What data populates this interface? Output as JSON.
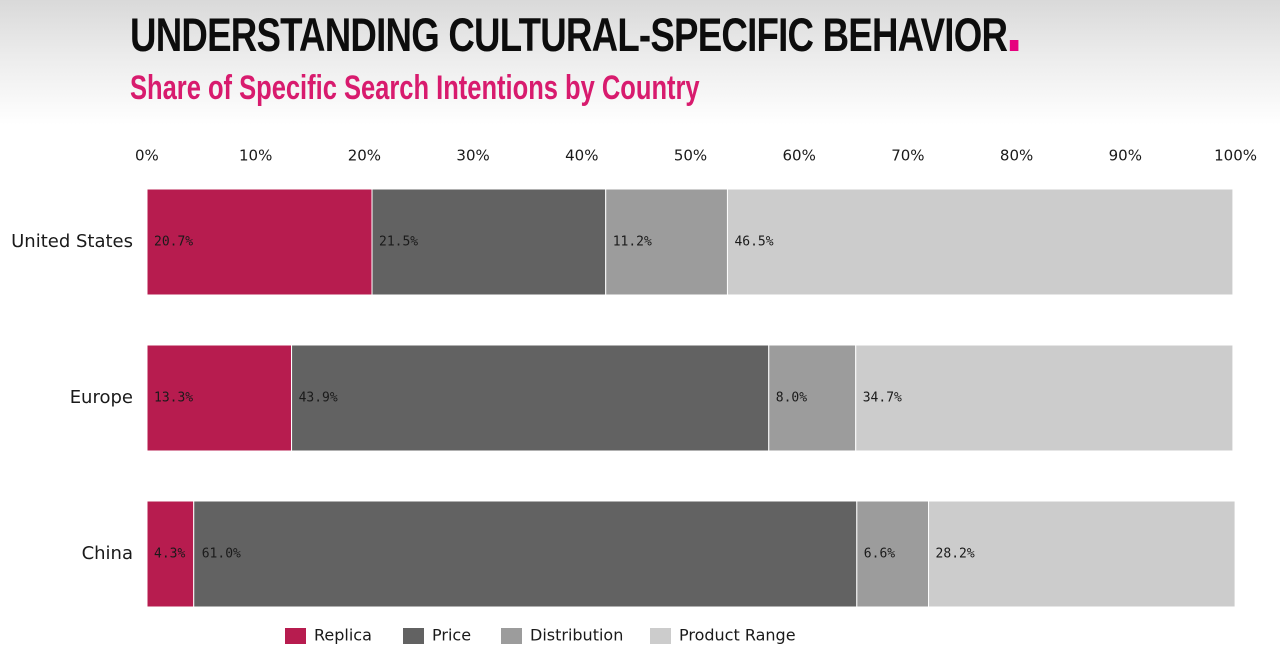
{
  "header": {
    "title": "UNDERSTANDING CULTURAL-SPECIFIC BEHAVIOR",
    "subtitle": "Share of Specific Search Intentions by Country"
  },
  "colors": {
    "Replica": "#b71c4f",
    "Price": "#626262",
    "Distribution": "#9c9c9c",
    "Product Range": "#cccccc",
    "title_accent": "#e6007e",
    "subtitle": "#d81b6e"
  },
  "chart_data": {
    "type": "bar",
    "orientation": "horizontal",
    "stacked": true,
    "title": "UNDERSTANDING CULTURAL-SPECIFIC BEHAVIOR",
    "subtitle": "Share of Specific Search Intentions by Country",
    "categories": [
      "United States",
      "Europe",
      "China"
    ],
    "series": [
      {
        "name": "Replica",
        "values": [
          20.7,
          13.3,
          4.3
        ],
        "labels": [
          "20.7%",
          "13.3%",
          "4.3%"
        ]
      },
      {
        "name": "Price",
        "values": [
          21.5,
          43.9,
          61.0
        ],
        "labels": [
          "21.5%",
          "43.9%",
          "61.0%"
        ]
      },
      {
        "name": "Distribution",
        "values": [
          11.2,
          8.0,
          6.6
        ],
        "labels": [
          "11.2%",
          "8.0%",
          "6.6%"
        ]
      },
      {
        "name": "Product Range",
        "values": [
          46.5,
          34.7,
          28.2
        ],
        "labels": [
          "46.5%",
          "34.7%",
          "28.2%"
        ]
      }
    ],
    "xlim": [
      0,
      100
    ],
    "x_ticks": [
      "0%",
      "10%",
      "20%",
      "30%",
      "40%",
      "50%",
      "60%",
      "70%",
      "80%",
      "90%",
      "100%"
    ],
    "x_axis_position": "top",
    "grid": false,
    "legend_position": "bottom"
  }
}
